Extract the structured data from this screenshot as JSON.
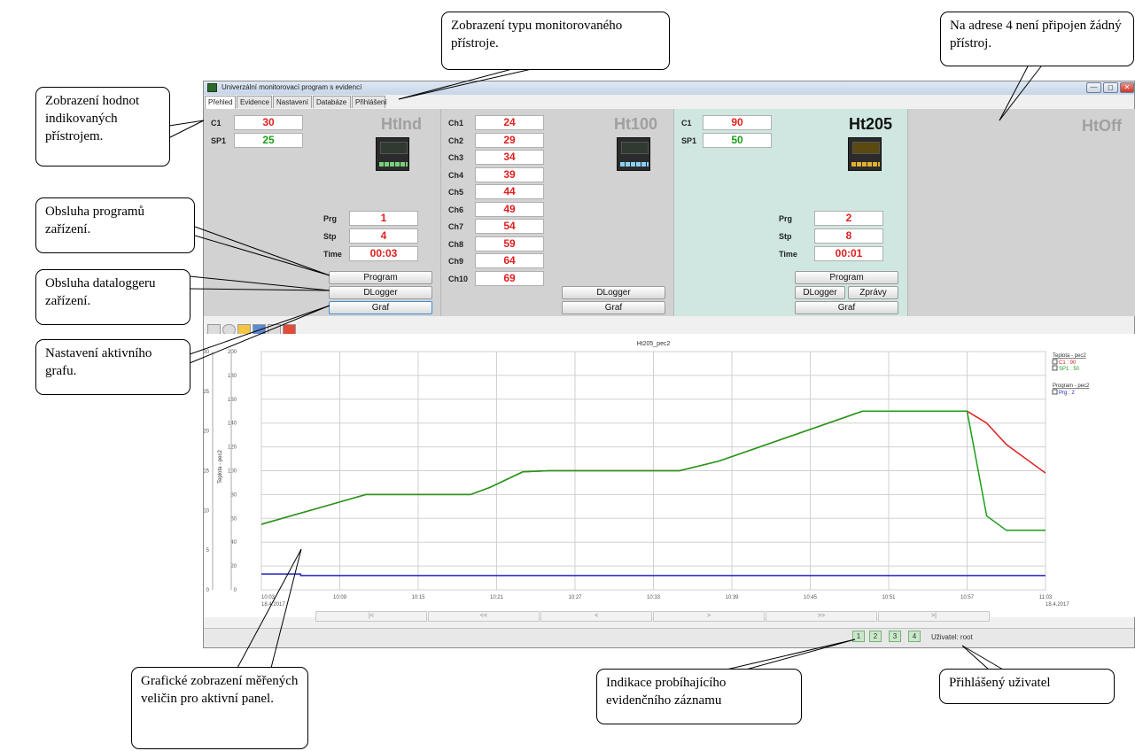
{
  "window": {
    "title": "Univerzální monitorovací program s evidencí",
    "controls": [
      "—",
      "◻",
      "✕"
    ],
    "tabs": [
      "Přehled",
      "Evidence",
      "Nastavení",
      "Databáze",
      "Přihlášení"
    ]
  },
  "panels": {
    "htind": {
      "name": "HtInd",
      "rows": [
        {
          "label": "C1",
          "value": "30",
          "color": "#e02020"
        },
        {
          "label": "SP1",
          "value": "25",
          "color": "#1a9e1a"
        }
      ],
      "prog": [
        {
          "label": "Prg",
          "value": "1"
        },
        {
          "label": "Stp",
          "value": "4"
        },
        {
          "label": "Time",
          "value": "00:03"
        }
      ],
      "buttons": {
        "program": "Program",
        "dlogger": "DLogger",
        "graf": "Graf"
      }
    },
    "ht100": {
      "name": "Ht100",
      "channels": [
        {
          "label": "Ch1",
          "value": "24"
        },
        {
          "label": "Ch2",
          "value": "29"
        },
        {
          "label": "Ch3",
          "value": "34"
        },
        {
          "label": "Ch4",
          "value": "39"
        },
        {
          "label": "Ch5",
          "value": "44"
        },
        {
          "label": "Ch6",
          "value": "49"
        },
        {
          "label": "Ch7",
          "value": "54"
        },
        {
          "label": "Ch8",
          "value": "59"
        },
        {
          "label": "Ch9",
          "value": "64"
        },
        {
          "label": "Ch10",
          "value": "69"
        }
      ],
      "buttons": {
        "dlogger": "DLogger",
        "graf": "Graf"
      }
    },
    "ht205": {
      "name": "Ht205",
      "rows": [
        {
          "label": "C1",
          "value": "90",
          "color": "#e02020"
        },
        {
          "label": "SP1",
          "value": "50",
          "color": "#1a9e1a"
        }
      ],
      "prog": [
        {
          "label": "Prg",
          "value": "2"
        },
        {
          "label": "Stp",
          "value": "8"
        },
        {
          "label": "Time",
          "value": "00:01"
        }
      ],
      "buttons": {
        "program": "Program",
        "dlogger": "DLogger",
        "zpravy": "Zprávy",
        "graf": "Graf"
      },
      "bg": "#cfe7e0"
    },
    "htoff": {
      "name": "HtOff"
    }
  },
  "chart_data": {
    "type": "line",
    "title": "Ht205_pec2",
    "x_ticks": [
      "10:03",
      "10:09",
      "10:15",
      "10:21",
      "10:27",
      "10:33",
      "10:39",
      "10:45",
      "10:51",
      "10:57",
      "11:03"
    ],
    "x_date": "18.4.2017",
    "y_left": {
      "label": "Teplota - pec2",
      "ticks": [
        0,
        20,
        40,
        60,
        80,
        100,
        120,
        140,
        160,
        180,
        200
      ],
      "range": [
        0,
        200
      ]
    },
    "y_right": {
      "label": "Program - pec2",
      "ticks": [
        0,
        5,
        10,
        15,
        20,
        25,
        30
      ],
      "range": [
        0,
        30
      ]
    },
    "x_minutes": [
      0,
      8,
      16,
      17.5,
      20,
      22,
      32,
      35,
      46,
      53,
      54,
      55.5,
      57,
      60
    ],
    "series": [
      {
        "name": "C1 : 90",
        "color": "#e02020",
        "values": [
          55,
          80,
          80,
          86,
          99,
          100,
          100,
          108,
          150,
          150,
          150,
          140,
          122,
          98
        ]
      },
      {
        "name": "SP1 : 50",
        "color": "#1a9e1a",
        "values": [
          55,
          80,
          80,
          86,
          99,
          100,
          100,
          108,
          150,
          150,
          150,
          62,
          50,
          50
        ]
      },
      {
        "name": "Prg : 2",
        "color": "#2020c0",
        "axis": "right",
        "x_minutes": [
          0,
          3,
          3,
          60
        ],
        "values": [
          2,
          2,
          1.8,
          1.8
        ]
      }
    ],
    "legend": {
      "group1": "Teplota - pec2",
      "group2": "Program - pec2"
    }
  },
  "nav_buttons": [
    "|<",
    "<<",
    "<",
    ">",
    ">>",
    ">|"
  ],
  "status": {
    "indicators": [
      "1",
      "2",
      "3",
      "4"
    ],
    "user": "Uživatel: root"
  },
  "callouts": {
    "hodnoty": "Zobrazení hodnot indikovaných přístrojem.",
    "typ": "Zobrazení typu monitorovaného přístroje.",
    "adresa": "Na adrese 4 není připojen žádný přístroj.",
    "programy": "Obsluha programů zařízení.",
    "datalogger": "Obsluha dataloggeru zařízení.",
    "graf": "Nastavení aktivního grafu.",
    "graficke": "Grafické zobrazení měřených veličin pro aktivní panel.",
    "indikace": "Indikace probíhajícího evidenčního záznamu",
    "uzivatel": "Přihlášený uživatel"
  }
}
